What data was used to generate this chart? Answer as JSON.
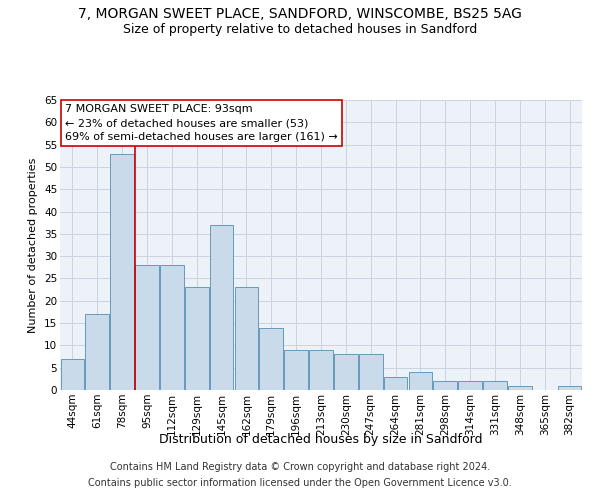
{
  "title1": "7, MORGAN SWEET PLACE, SANDFORD, WINSCOMBE, BS25 5AG",
  "title2": "Size of property relative to detached houses in Sandford",
  "xlabel": "Distribution of detached houses by size in Sandford",
  "ylabel": "Number of detached properties",
  "categories": [
    "44sqm",
    "61sqm",
    "78sqm",
    "95sqm",
    "112sqm",
    "129sqm",
    "145sqm",
    "162sqm",
    "179sqm",
    "196sqm",
    "213sqm",
    "230sqm",
    "247sqm",
    "264sqm",
    "281sqm",
    "298sqm",
    "314sqm",
    "331sqm",
    "348sqm",
    "365sqm",
    "382sqm"
  ],
  "values": [
    7,
    17,
    53,
    28,
    28,
    23,
    37,
    23,
    14,
    9,
    9,
    8,
    8,
    3,
    4,
    2,
    2,
    2,
    1,
    0,
    1
  ],
  "bar_color": "#c9daea",
  "bar_edge_color": "#6699bb",
  "bar_edge_width": 0.7,
  "grid_color": "#c8d4e0",
  "bg_color": "#edf2f8",
  "vline_x": 2.5,
  "vline_color": "#cc0000",
  "annotation_text": "7 MORGAN SWEET PLACE: 93sqm\n← 23% of detached houses are smaller (53)\n69% of semi-detached houses are larger (161) →",
  "annotation_box_color": "#ffffff",
  "annotation_box_edge": "#cc0000",
  "footer1": "Contains HM Land Registry data © Crown copyright and database right 2024.",
  "footer2": "Contains public sector information licensed under the Open Government Licence v3.0.",
  "ylim": [
    0,
    65
  ],
  "yticks": [
    0,
    5,
    10,
    15,
    20,
    25,
    30,
    35,
    40,
    45,
    50,
    55,
    60,
    65
  ],
  "title1_fontsize": 10,
  "title2_fontsize": 9,
  "xlabel_fontsize": 9,
  "ylabel_fontsize": 8,
  "tick_fontsize": 7.5,
  "annotation_fontsize": 8,
  "footer_fontsize": 7
}
